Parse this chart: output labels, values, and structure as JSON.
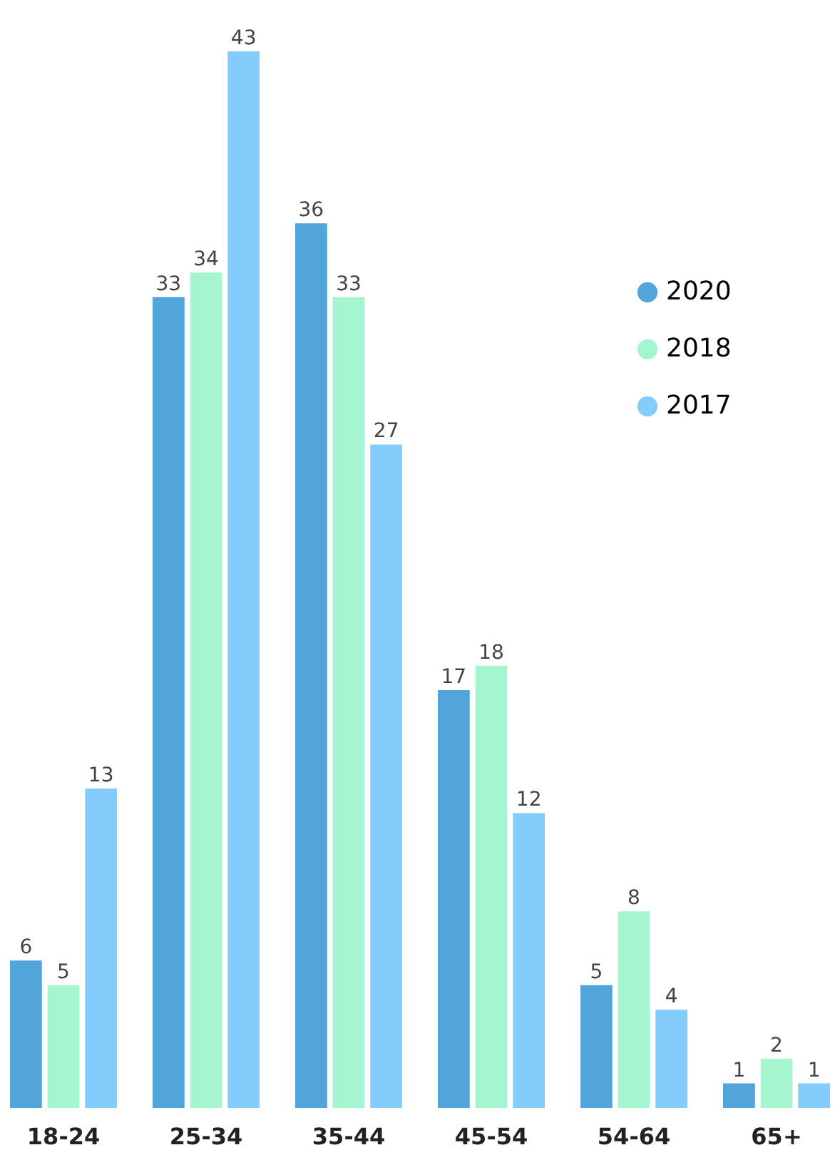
{
  "chart_data": {
    "type": "bar",
    "categories": [
      "18-24",
      "25-34",
      "35-44",
      "45-54",
      "54-64",
      "65+"
    ],
    "series": [
      {
        "name": "2020",
        "color": "#52a5da",
        "values": [
          6,
          33,
          36,
          17,
          5,
          1
        ]
      },
      {
        "name": "2018",
        "color": "#a5f5d0",
        "values": [
          5,
          34,
          33,
          18,
          8,
          2
        ]
      },
      {
        "name": "2017",
        "color": "#84ccfc",
        "values": [
          13,
          43,
          27,
          12,
          4,
          1
        ]
      }
    ],
    "data_labels": true,
    "legend": "top right",
    "grid": false
  }
}
